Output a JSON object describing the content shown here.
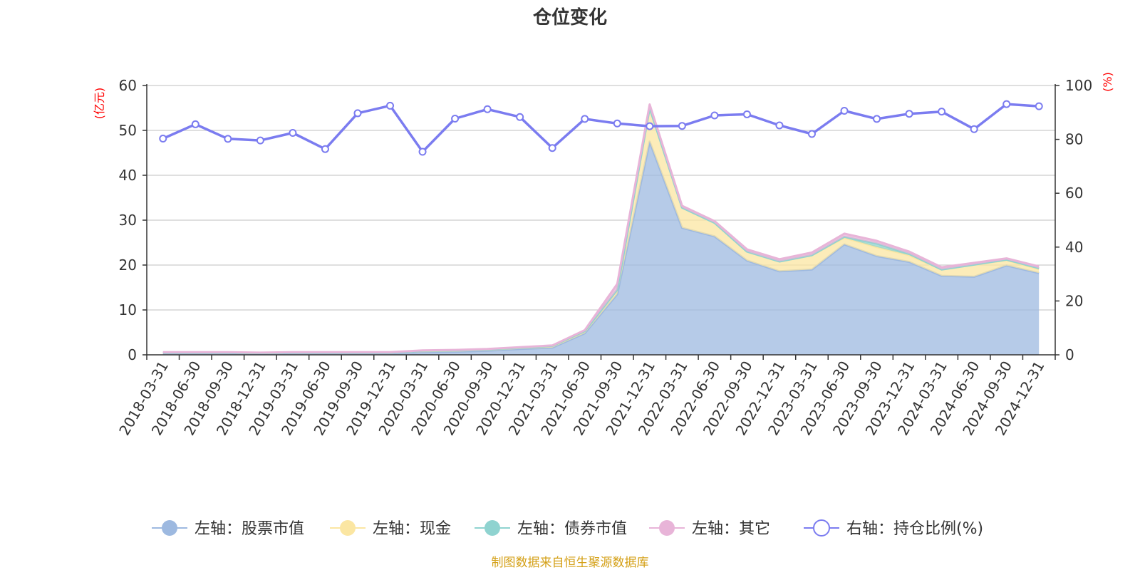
{
  "chart_data": {
    "type": "area",
    "title": "仓位变化",
    "left_axis": {
      "unit": "(亿元)",
      "ylim": [
        0,
        60
      ],
      "ticks": [
        0,
        10,
        20,
        30,
        40,
        50,
        60
      ]
    },
    "right_axis": {
      "unit": "(%)",
      "ylim": [
        0,
        100
      ],
      "ticks": [
        0,
        20,
        40,
        60,
        80,
        100
      ]
    },
    "categories": [
      "2018-03-31",
      "2018-06-30",
      "2018-09-30",
      "2018-12-31",
      "2019-03-31",
      "2019-06-30",
      "2019-09-30",
      "2019-12-31",
      "2020-03-31",
      "2020-06-30",
      "2020-09-30",
      "2020-12-31",
      "2021-03-31",
      "2021-06-30",
      "2021-09-30",
      "2021-12-31",
      "2022-03-31",
      "2022-06-30",
      "2022-09-30",
      "2022-12-31",
      "2023-03-31",
      "2023-06-30",
      "2023-09-30",
      "2023-12-31",
      "2024-03-31",
      "2024-06-30",
      "2024-09-30",
      "2024-12-31"
    ],
    "series": [
      {
        "name": "左轴：股票市值",
        "axis": "left",
        "color": "#9db9e0",
        "values": [
          0.4,
          0.4,
          0.4,
          0.3,
          0.4,
          0.4,
          0.4,
          0.4,
          0.6,
          0.7,
          0.9,
          1.3,
          1.6,
          4.8,
          13.5,
          47.5,
          28.3,
          26.4,
          21.0,
          18.6,
          19.0,
          24.6,
          22.0,
          20.7,
          17.6,
          17.4,
          19.9,
          18.2
        ]
      },
      {
        "name": "左轴：现金",
        "axis": "left",
        "color": "#fbe6a2",
        "values": [
          0.1,
          0.1,
          0.1,
          0.1,
          0.1,
          0.1,
          0.1,
          0.1,
          0.3,
          0.3,
          0.3,
          0.3,
          0.4,
          0.5,
          1.0,
          7.5,
          4.5,
          3.0,
          2.0,
          2.2,
          3.2,
          1.5,
          2.0,
          1.5,
          1.4,
          2.7,
          1.2,
          0.9
        ]
      },
      {
        "name": "左轴：债券市值",
        "axis": "left",
        "color": "#8fd3d0",
        "values": [
          0,
          0,
          0,
          0,
          0,
          0,
          0,
          0,
          0,
          0,
          0,
          0,
          0,
          0,
          0,
          0,
          0,
          0,
          0,
          0,
          0,
          0.2,
          0.8,
          0.3,
          0,
          0,
          0.1,
          0.2
        ]
      },
      {
        "name": "左轴：其它",
        "axis": "left",
        "color": "#e8b4d8",
        "values": [
          0.1,
          0.1,
          0.1,
          0.1,
          0.1,
          0.1,
          0.1,
          0.1,
          0.1,
          0.1,
          0.1,
          0.1,
          0.1,
          0.2,
          1.3,
          0.8,
          0.4,
          0.4,
          0.5,
          0.5,
          0.6,
          0.7,
          0.6,
          0.5,
          0.5,
          0.4,
          0.3,
          0.4
        ]
      },
      {
        "name": "右轴：持仓比例(%)",
        "axis": "right",
        "color": "#7b7cf0",
        "values": [
          80.3,
          85.6,
          80.2,
          79.6,
          82.4,
          76.4,
          89.7,
          92.5,
          75.4,
          87.7,
          91.2,
          88.3,
          76.8,
          87.6,
          85.9,
          84.9,
          85.0,
          88.9,
          89.3,
          85.2,
          82.0,
          90.6,
          87.6,
          89.5,
          90.3,
          83.8,
          93.1,
          92.3
        ]
      }
    ]
  },
  "source_note": "制图数据来自恒生聚源数据库"
}
